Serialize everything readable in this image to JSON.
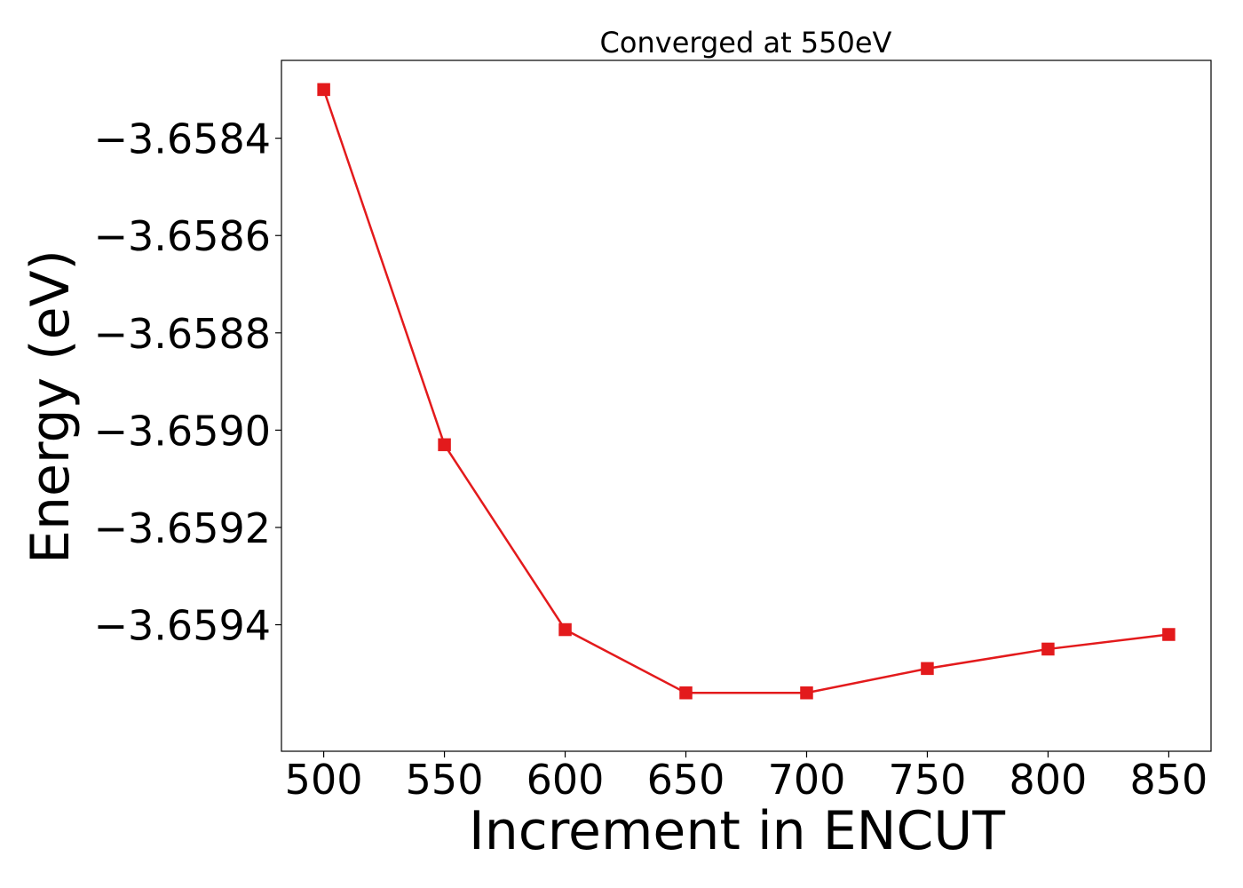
{
  "chart_data": {
    "type": "line",
    "title": "Converged at 550eV",
    "xlabel": "Increment in ENCUT",
    "ylabel": "Energy (eV)",
    "x": [
      500,
      550,
      600,
      650,
      700,
      750,
      800,
      850
    ],
    "series": [
      {
        "values": [
          -3.6583,
          -3.65903,
          -3.65941,
          -3.65954,
          -3.65954,
          -3.65949,
          -3.65945,
          -3.65942
        ],
        "color": "#e31a1c",
        "marker": "square"
      }
    ],
    "xlim": [
      482.5,
      867.5
    ],
    "ylim": [
      -3.65966,
      -3.65824
    ],
    "xticks": [
      500,
      550,
      600,
      650,
      700,
      750,
      800,
      850
    ],
    "xtick_labels": [
      "500",
      "550",
      "600",
      "650",
      "700",
      "750",
      "800",
      "850"
    ],
    "yticks": [
      -3.6584,
      -3.6586,
      -3.6588,
      -3.659,
      -3.6592,
      -3.6594
    ],
    "ytick_labels": [
      "−3.6584",
      "−3.6586",
      "−3.6588",
      "−3.6590",
      "−3.6592",
      "−3.6594"
    ],
    "grid": false,
    "legend": "none"
  }
}
